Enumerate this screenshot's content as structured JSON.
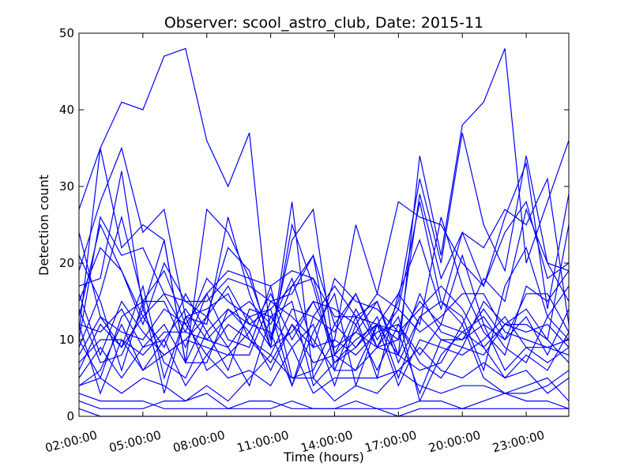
{
  "chart_data": {
    "type": "line",
    "title": "Observer: scool_astro_club, Date: 2015-11",
    "xlabel": "Time (hours)",
    "ylabel": "Detection count",
    "xlim": [
      2,
      25
    ],
    "ylim": [
      0,
      50
    ],
    "grid": false,
    "legend": "none",
    "color": "#0000ff",
    "x_ticks": [
      {
        "value": 2,
        "label": "02:00:00"
      },
      {
        "value": 5,
        "label": "05:00:00"
      },
      {
        "value": 8,
        "label": "08:00:00"
      },
      {
        "value": 11,
        "label": "11:00:00"
      },
      {
        "value": 14,
        "label": "14:00:00"
      },
      {
        "value": 17,
        "label": "17:00:00"
      },
      {
        "value": 20,
        "label": "20:00:00"
      },
      {
        "value": 23,
        "label": "23:00:00"
      }
    ],
    "y_ticks": [
      {
        "value": 0,
        "label": "0"
      },
      {
        "value": 10,
        "label": "10"
      },
      {
        "value": 20,
        "label": "20"
      },
      {
        "value": 30,
        "label": "30"
      },
      {
        "value": 40,
        "label": "40"
      },
      {
        "value": 50,
        "label": "50"
      }
    ],
    "x": [
      2,
      3,
      4,
      5,
      6,
      7,
      8,
      9,
      10,
      11,
      12,
      13,
      14,
      15,
      16,
      17,
      18,
      19,
      20,
      21,
      22,
      23,
      24,
      25
    ],
    "series": [
      {
        "values": [
          27,
          35,
          41,
          40,
          47,
          48,
          36,
          30,
          37,
          10,
          17,
          18,
          8,
          6,
          12,
          8,
          34,
          21,
          38,
          41,
          48,
          20,
          28,
          36
        ]
      },
      {
        "values": [
          11,
          35,
          22,
          25,
          23,
          7,
          27,
          24,
          18,
          10,
          23,
          27,
          8,
          14,
          9,
          15,
          31,
          20,
          37,
          25,
          19,
          34,
          20,
          19
        ]
      },
      {
        "values": [
          17,
          18,
          32,
          14,
          23,
          7,
          13,
          22,
          19,
          9,
          25,
          17,
          7,
          9,
          12,
          10,
          29,
          18,
          24,
          22,
          27,
          25,
          31,
          12
        ]
      },
      {
        "values": [
          15,
          22,
          19,
          12,
          20,
          15,
          15,
          18,
          17,
          15,
          16,
          21,
          6,
          13,
          5,
          16,
          23,
          14,
          24,
          17,
          26,
          33,
          14,
          29
        ]
      },
      {
        "values": [
          19,
          28,
          35,
          24,
          27,
          13,
          12,
          26,
          16,
          9,
          28,
          5,
          10,
          25,
          16,
          28,
          26,
          25,
          20,
          17,
          24,
          28,
          18,
          20
        ]
      },
      {
        "values": [
          13,
          25,
          19,
          13,
          16,
          11,
          18,
          15,
          13,
          14,
          17,
          21,
          12,
          16,
          10,
          14,
          28,
          15,
          12,
          18,
          15,
          27,
          20,
          15
        ]
      },
      {
        "values": [
          10,
          26,
          21,
          22,
          16,
          15,
          13,
          9,
          13,
          9,
          11,
          15,
          9,
          11,
          15,
          7,
          13,
          15,
          13,
          6,
          17,
          22,
          13,
          17
        ]
      },
      {
        "values": [
          9,
          16,
          26,
          15,
          19,
          12,
          16,
          19,
          18,
          17,
          19,
          18,
          13,
          13,
          12,
          16,
          12,
          26,
          17,
          11,
          8,
          17,
          15,
          19
        ]
      },
      {
        "values": [
          24,
          13,
          9,
          17,
          5,
          13,
          14,
          16,
          10,
          8,
          14,
          13,
          11,
          16,
          9,
          10,
          15,
          12,
          21,
          12,
          10,
          16,
          16,
          11
        ]
      },
      {
        "values": [
          12,
          11,
          14,
          9,
          10,
          14,
          10,
          13,
          15,
          12,
          18,
          9,
          18,
          15,
          14,
          11,
          14,
          17,
          14,
          9,
          12,
          14,
          10,
          25
        ]
      },
      {
        "values": [
          6,
          12,
          9,
          13,
          9,
          16,
          11,
          14,
          11,
          16,
          10,
          15,
          14,
          12,
          16,
          14,
          11,
          13,
          16,
          16,
          11,
          10,
          9,
          10
        ]
      },
      {
        "values": [
          16,
          8,
          15,
          11,
          8,
          10,
          13,
          17,
          12,
          14,
          4,
          13,
          17,
          13,
          15,
          8,
          16,
          11,
          10,
          14,
          10,
          13,
          8,
          14
        ]
      },
      {
        "values": [
          10,
          5,
          13,
          15,
          15,
          9,
          16,
          10,
          9,
          17,
          5,
          6,
          12,
          9,
          13,
          5,
          13,
          10,
          9,
          15,
          12,
          11,
          12,
          9
        ]
      },
      {
        "values": [
          8,
          13,
          11,
          10,
          14,
          12,
          8,
          12,
          10,
          7,
          12,
          9,
          10,
          8,
          11,
          12,
          8,
          12,
          11,
          13,
          9,
          7,
          13,
          10
        ]
      },
      {
        "values": [
          7,
          10,
          10,
          8,
          11,
          11,
          10,
          9,
          4,
          13,
          15,
          4,
          7,
          10,
          12,
          4,
          10,
          9,
          8,
          10,
          13,
          9,
          7,
          9
        ]
      },
      {
        "values": [
          5,
          9,
          5,
          9,
          12,
          7,
          7,
          14,
          12,
          11,
          4,
          11,
          16,
          4,
          12,
          11,
          3,
          10,
          10,
          12,
          6,
          9,
          9,
          8
        ]
      },
      {
        "values": [
          4,
          6,
          12,
          6,
          8,
          10,
          9,
          8,
          11,
          6,
          12,
          7,
          8,
          11,
          9,
          13,
          2,
          8,
          11,
          9,
          5,
          8,
          6,
          11
        ]
      },
      {
        "values": [
          14,
          7,
          8,
          14,
          7,
          5,
          11,
          6,
          14,
          13,
          9,
          12,
          4,
          12,
          6,
          12,
          7,
          5,
          9,
          8,
          12,
          12,
          10,
          7
        ]
      },
      {
        "values": [
          21,
          15,
          6,
          15,
          3,
          13,
          6,
          8,
          8,
          15,
          13,
          10,
          6,
          6,
          9,
          8,
          6,
          7,
          12,
          5,
          3,
          3,
          4,
          6
        ]
      },
      {
        "values": [
          12,
          3,
          10,
          6,
          10,
          4,
          8,
          5,
          6,
          4,
          9,
          3,
          5,
          5,
          5,
          6,
          9,
          6,
          5,
          7,
          5,
          6,
          3,
          5
        ]
      },
      {
        "values": [
          4,
          5,
          3,
          5,
          4,
          2,
          4,
          2,
          5,
          8,
          5,
          5,
          2,
          4,
          3,
          6,
          4,
          3,
          4,
          4,
          3,
          4,
          5,
          2
        ]
      },
      {
        "values": [
          2,
          1,
          1,
          1,
          2,
          2,
          3,
          1,
          2,
          2,
          1,
          1,
          1,
          2,
          1,
          1,
          2,
          2,
          1,
          2,
          3,
          2,
          2,
          1
        ]
      },
      {
        "values": [
          3,
          2,
          2,
          2,
          1,
          1,
          1,
          1,
          1,
          1,
          2,
          1,
          1,
          1,
          1,
          0,
          1,
          1,
          1,
          1,
          1,
          1,
          1,
          1
        ]
      },
      {
        "values": [
          1,
          0,
          0,
          0,
          0,
          0,
          0,
          0,
          0,
          0,
          0,
          0,
          0,
          0,
          0,
          0,
          0,
          0,
          0,
          0,
          0,
          0,
          0,
          0
        ]
      }
    ]
  }
}
